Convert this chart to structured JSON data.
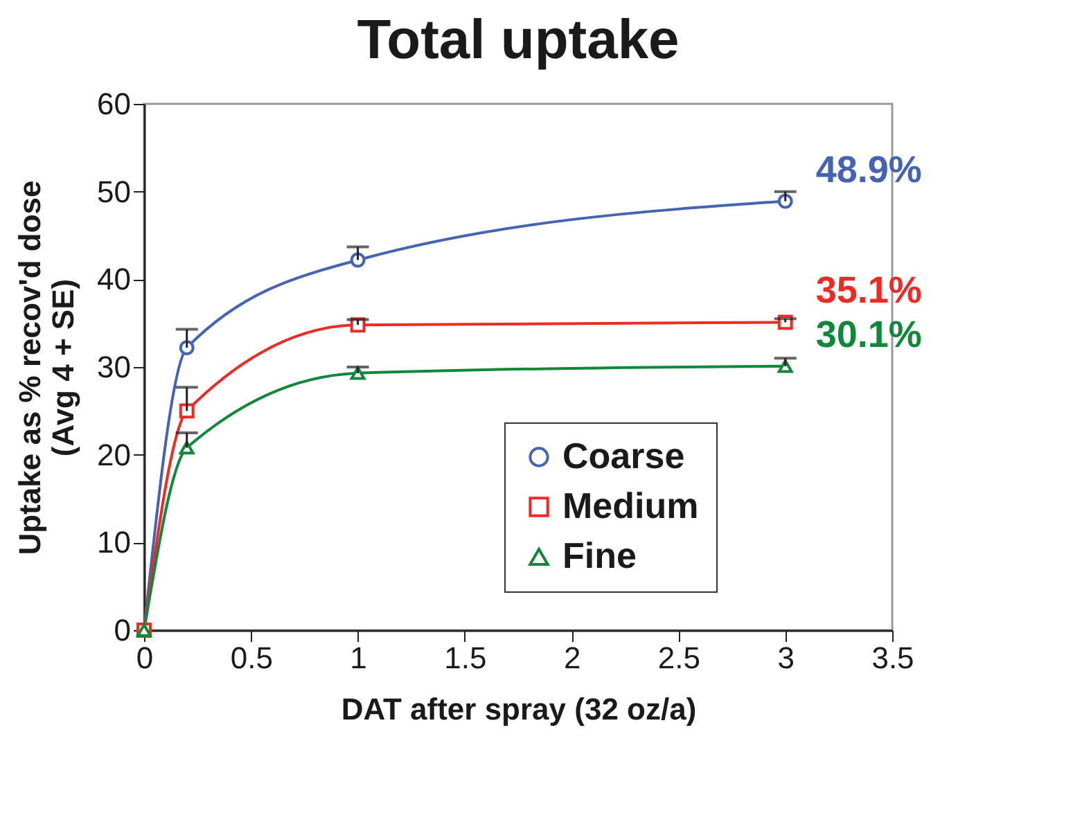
{
  "chart_data": {
    "type": "line",
    "title": "Total uptake",
    "xlabel": "DAT after spray (32 oz/a)",
    "ylabel": "Uptake as % recov'd dose\n(Avg 4 + SE)",
    "x": [
      0,
      0.2,
      1,
      3
    ],
    "series": [
      {
        "name": "Coarse",
        "color": "#4463b0",
        "marker": "circle",
        "values": [
          0,
          32.2,
          42.2,
          48.9
        ],
        "errors": [
          null,
          [
            32.2,
            34.3
          ],
          [
            42.2,
            43.7
          ],
          [
            48.9,
            50
          ]
        ]
      },
      {
        "name": "Medium",
        "color": "#ee2a24",
        "marker": "square",
        "values": [
          0,
          25,
          34.8,
          35.1
        ],
        "errors": [
          null,
          [
            25,
            27.7
          ],
          [
            34.8,
            35.4
          ],
          [
            35.1,
            35.5
          ]
        ]
      },
      {
        "name": "Fine",
        "color": "#10873a",
        "marker": "triangle",
        "values": [
          0,
          20.8,
          29.3,
          30.1
        ],
        "errors": [
          null,
          [
            20.8,
            22.5
          ],
          [
            29.3,
            30
          ],
          [
            30.1,
            31
          ]
        ]
      }
    ],
    "annotations": [
      "48.9%",
      "35.1%",
      "30.1%"
    ],
    "xlim": [
      0,
      3.5
    ],
    "xticks": [
      0,
      0.5,
      1,
      1.5,
      2,
      2.5,
      3,
      3.5
    ],
    "ylim": [
      0,
      60
    ],
    "yticks": [
      0,
      10,
      20,
      30,
      40,
      50,
      60
    ],
    "grid": false,
    "legend": "bottom right"
  }
}
